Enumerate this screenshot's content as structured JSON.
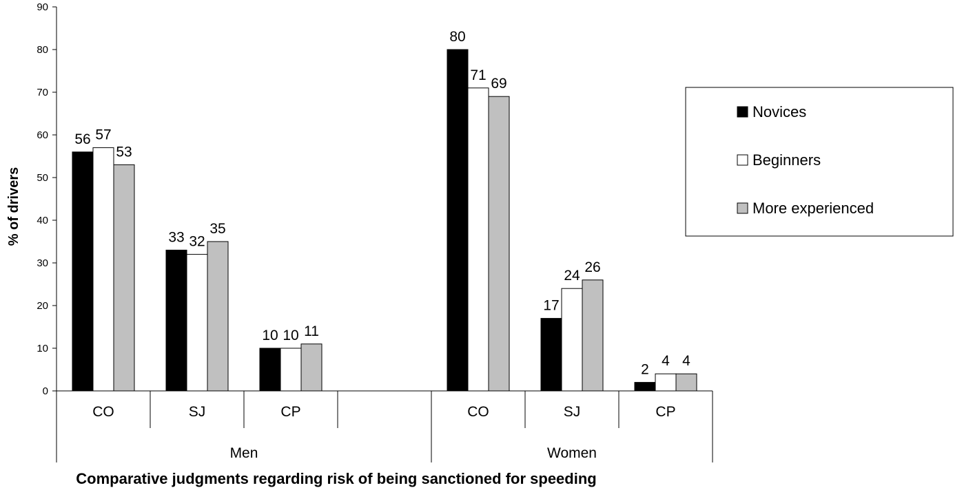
{
  "chart_data": {
    "type": "bar",
    "xlabel": "Comparative judgments regarding risk of being sanctioned for speeding",
    "ylabel": "% of drivers",
    "ylim": [
      0,
      90
    ],
    "yticks": [
      0,
      10,
      20,
      30,
      40,
      50,
      60,
      70,
      80,
      90
    ],
    "groups": [
      {
        "label": "Men",
        "categories": [
          "CO",
          "SJ",
          "CP",
          ""
        ]
      },
      {
        "label": "Women",
        "categories": [
          "CO",
          "SJ",
          "CP"
        ]
      }
    ],
    "categories": [
      "CO",
      "SJ",
      "CP",
      "",
      "CO",
      "SJ",
      "CP"
    ],
    "series": [
      {
        "name": "Novices",
        "color": "#000000",
        "values": [
          56,
          33,
          10,
          null,
          80,
          17,
          2
        ]
      },
      {
        "name": "Beginners",
        "color": "#ffffff",
        "values": [
          57,
          32,
          10,
          null,
          71,
          24,
          4
        ]
      },
      {
        "name": "More experienced",
        "color": "#c0c0c0",
        "values": [
          53,
          35,
          11,
          null,
          69,
          26,
          4
        ]
      }
    ],
    "legend_position": "right",
    "grid": false
  }
}
